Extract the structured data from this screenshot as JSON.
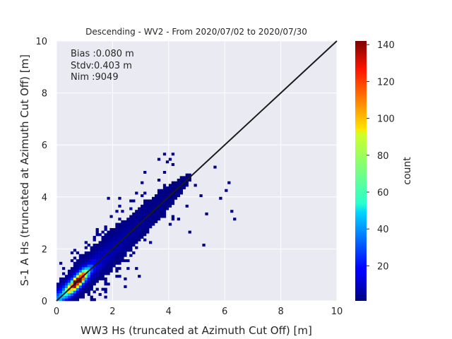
{
  "chart_data": {
    "type": "heatmap",
    "title": "Descending - WV2 - From 2020/07/02 to 2020/07/30",
    "xlabel": "WW3 Hs (truncated at Azimuth Cut Off) [m]",
    "ylabel": "S-1 A Hs (truncated at Azimuth Cut Off) [m]",
    "xlim": [
      0,
      10
    ],
    "ylim": [
      0,
      10
    ],
    "xticks": [
      "0",
      "2",
      "4",
      "6",
      "8",
      "10"
    ],
    "yticks": [
      "0",
      "2",
      "4",
      "6",
      "8",
      "10"
    ],
    "grid": true,
    "stats": [
      "Bias :0.080 m",
      "Stdv:0.403 m",
      "Nim :9049"
    ],
    "identity_line": {
      "x": [
        0,
        10
      ],
      "y": [
        0,
        10
      ],
      "color": "#1a1a1a"
    },
    "colorbar": {
      "label": "count",
      "min": 1,
      "max": 142,
      "ticks": [
        "20",
        "40",
        "60",
        "80",
        "100",
        "120",
        "140"
      ],
      "tick_values": [
        20,
        40,
        60,
        80,
        100,
        120,
        140
      ],
      "colormap": "jet"
    },
    "background": "#eaeaf2"
  }
}
